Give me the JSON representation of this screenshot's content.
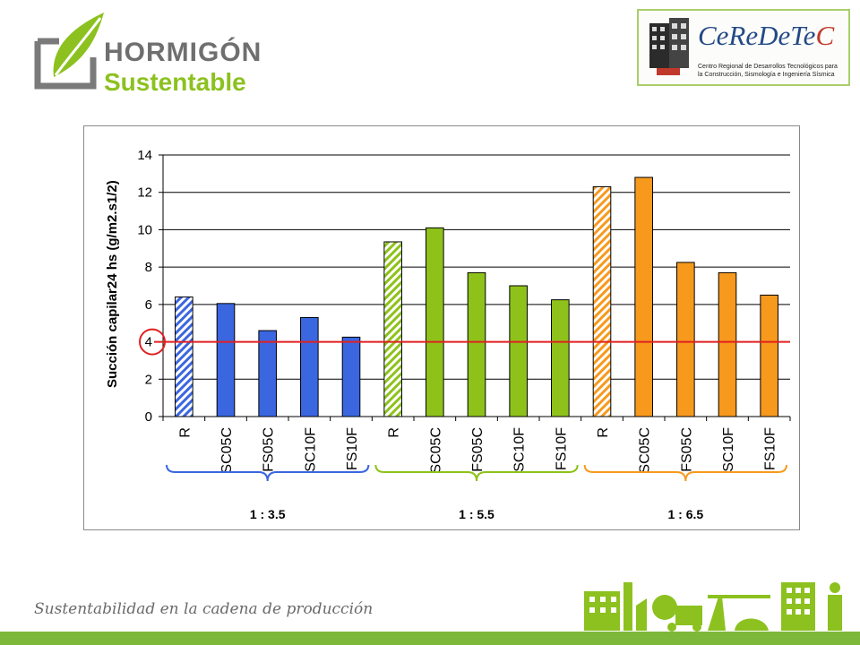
{
  "header": {
    "logo_left": {
      "line1": "HORMIGÓN",
      "line2": "Sustentable"
    },
    "logo_right": {
      "name_main": "CeReDeTe",
      "name_tail": "C",
      "subtitle_line1": "Centro Regional de Desarrollos Tecnológicos para",
      "subtitle_line2": "la Construcción, Sismología e Ingeniería Sísmica"
    }
  },
  "footer": {
    "tagline": "Sustentabilidad en la cadena de producción"
  },
  "colors": {
    "blue": "#3a66e0",
    "green": "#8ec21a",
    "orange": "#f7991d",
    "threshold": "#e02020",
    "footer_bar": "#7db83a"
  },
  "chart_data": {
    "type": "bar",
    "title": "",
    "ylabel": "Succión capilar24 hs (g/m2.s1/2)",
    "xlabel": "",
    "ylim": [
      0,
      14
    ],
    "yticks": [
      0,
      2,
      4,
      6,
      8,
      10,
      12,
      14
    ],
    "grid": true,
    "categories": [
      "R",
      "SC05C",
      "FS05C",
      "SC10F",
      "FS10F",
      "R",
      "SC05C",
      "FS05C",
      "SC10F",
      "FS10F",
      "R",
      "SC05C",
      "FS05C",
      "SC10F",
      "FS10F"
    ],
    "values": [
      6.4,
      6.05,
      4.6,
      5.3,
      4.25,
      9.35,
      10.1,
      7.7,
      7.0,
      6.25,
      12.3,
      12.8,
      8.25,
      7.7,
      6.5
    ],
    "bar_colors": [
      "blue",
      "blue",
      "blue",
      "blue",
      "blue",
      "green",
      "green",
      "green",
      "green",
      "green",
      "orange",
      "orange",
      "orange",
      "orange",
      "orange"
    ],
    "hatched": [
      true,
      false,
      false,
      false,
      false,
      true,
      false,
      false,
      false,
      false,
      true,
      false,
      false,
      false,
      false
    ],
    "groups": [
      {
        "label": "1 : 3.5",
        "color": "blue",
        "start": 0,
        "end": 4
      },
      {
        "label": "1 : 5.5",
        "color": "green",
        "start": 5,
        "end": 9
      },
      {
        "label": "1 : 6.5",
        "color": "orange",
        "start": 10,
        "end": 14
      }
    ],
    "reference_line": {
      "y": 4,
      "color": "threshold"
    }
  }
}
